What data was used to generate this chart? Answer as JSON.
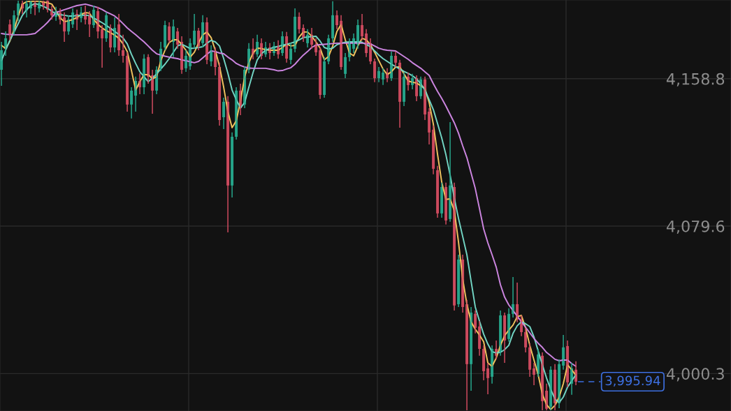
{
  "chart_data": {
    "type": "candlestick",
    "categories": [
      null,
      null,
      null,
      null,
      null,
      null,
      null,
      null,
      null,
      null,
      null,
      null,
      null,
      null,
      null,
      null,
      null,
      null,
      null,
      null,
      null,
      null,
      null,
      null,
      null,
      null,
      null,
      null,
      null,
      null,
      null,
      null,
      null,
      null,
      null,
      null,
      null,
      null,
      null,
      null,
      null,
      null,
      null,
      null,
      null,
      null,
      null,
      null,
      null,
      null,
      null,
      null,
      null,
      null,
      null,
      null,
      null,
      null,
      null,
      null,
      null,
      null,
      null,
      null,
      null,
      null,
      null,
      null,
      null,
      null,
      null,
      null,
      null,
      null,
      null,
      null,
      null,
      null,
      null,
      null,
      null,
      null,
      null,
      null,
      null,
      null,
      null,
      null,
      null,
      null,
      null,
      null,
      null,
      null,
      null,
      null,
      null,
      null,
      null,
      null,
      null,
      null,
      null,
      null,
      null,
      null,
      null,
      null,
      null,
      null,
      null,
      null,
      null,
      null,
      null,
      null,
      null,
      null,
      null,
      null,
      null,
      null,
      null,
      null,
      null,
      null,
      null,
      null,
      null,
      null,
      null,
      null,
      null,
      null,
      null,
      null,
      null,
      null
    ],
    "ohlc": [
      [
        4163.6,
        4178.6,
        4155.0,
        4174.1
      ],
      [
        4174.9,
        4184.2,
        4171.1,
        4180.5
      ],
      [
        4188.0,
        4190.6,
        4179.4,
        4182.4
      ],
      [
        4184.2,
        4195.5,
        4182.4,
        4192.9
      ],
      [
        4192.9,
        4200.7,
        4189.9,
        4199.2
      ],
      [
        4199.2,
        4200.7,
        4193.6,
        4196.6
      ],
      [
        4195.5,
        4200.7,
        4191.7,
        4199.2
      ],
      [
        4196.6,
        4200.7,
        4193.6,
        4200.4
      ],
      [
        4199.6,
        4200.7,
        4192.9,
        4197.4
      ],
      [
        4196.6,
        4200.7,
        4194.4,
        4199.6
      ],
      [
        4200.4,
        4200.7,
        4195.9,
        4198.1
      ],
      [
        4200.7,
        4200.9,
        4194.4,
        4195.9
      ],
      [
        4196.2,
        4198.1,
        4190.6,
        4192.9
      ],
      [
        4192.1,
        4197.4,
        4189.9,
        4195.1
      ],
      [
        4194.4,
        4196.6,
        4188.0,
        4190.6
      ],
      [
        4191.7,
        4194.4,
        4178.6,
        4184.2
      ],
      [
        4184.2,
        4192.9,
        4182.4,
        4190.6
      ],
      [
        4188.0,
        4196.6,
        4186.1,
        4194.4
      ],
      [
        4193.6,
        4195.9,
        4185.0,
        4190.6
      ],
      [
        4191.4,
        4197.4,
        4189.1,
        4194.4
      ],
      [
        4194.4,
        4198.1,
        4188.0,
        4190.6
      ],
      [
        4192.9,
        4195.1,
        4181.2,
        4188.0
      ],
      [
        4187.6,
        4198.1,
        4186.1,
        4195.9
      ],
      [
        4195.1,
        4197.4,
        4180.5,
        4184.2
      ],
      [
        4185.4,
        4187.6,
        4164.7,
        4180.5
      ],
      [
        4180.5,
        4194.4,
        4178.6,
        4192.9
      ],
      [
        4186.1,
        4188.0,
        4173.0,
        4175.6
      ],
      [
        4175.6,
        4191.7,
        4173.0,
        4186.1
      ],
      [
        4188.0,
        4193.6,
        4171.1,
        4174.1
      ],
      [
        4174.1,
        4182.4,
        4167.4,
        4171.1
      ],
      [
        4171.1,
        4173.0,
        4141.1,
        4144.9
      ],
      [
        4144.9,
        4154.2,
        4137.4,
        4152.4
      ],
      [
        4149.7,
        4159.9,
        4141.1,
        4157.6
      ],
      [
        4157.6,
        4161.7,
        4150.5,
        4154.2
      ],
      [
        4154.2,
        4171.9,
        4150.5,
        4169.6
      ],
      [
        4170.4,
        4171.9,
        4156.1,
        4159.9
      ],
      [
        4160.6,
        4163.6,
        4140.0,
        4152.4
      ],
      [
        4152.4,
        4165.5,
        4150.5,
        4163.6
      ],
      [
        4164.4,
        4178.6,
        4162.9,
        4174.9
      ],
      [
        4175.6,
        4189.9,
        4174.1,
        4187.6
      ],
      [
        4186.9,
        4189.1,
        4177.9,
        4179.4
      ],
      [
        4178.6,
        4190.6,
        4170.4,
        4186.9
      ],
      [
        4184.2,
        4186.1,
        4174.9,
        4177.1
      ],
      [
        4178.6,
        4181.6,
        4161.4,
        4163.6
      ],
      [
        4164.4,
        4174.1,
        4162.5,
        4171.1
      ],
      [
        4165.5,
        4180.5,
        4163.6,
        4177.9
      ],
      [
        4177.1,
        4193.6,
        4174.9,
        4184.6
      ],
      [
        4184.6,
        4186.1,
        4174.1,
        4176.4
      ],
      [
        4177.9,
        4192.9,
        4175.6,
        4189.1
      ],
      [
        4189.1,
        4191.7,
        4166.6,
        4168.9
      ],
      [
        4168.1,
        4176.7,
        4165.5,
        4174.1
      ],
      [
        4173.4,
        4175.6,
        4160.6,
        4165.1
      ],
      [
        4165.1,
        4167.4,
        4133.6,
        4136.6
      ],
      [
        4138.1,
        4148.6,
        4131.7,
        4146.4
      ],
      [
        4146.4,
        4149.4,
        4076.2,
        4101.4
      ],
      [
        4101.4,
        4129.9,
        4095.0,
        4127.6
      ],
      [
        4127.6,
        4154.2,
        4126.1,
        4152.4
      ],
      [
        4152.4,
        4156.1,
        4139.2,
        4143.0
      ],
      [
        4144.9,
        4165.5,
        4143.0,
        4163.6
      ],
      [
        4163.6,
        4177.9,
        4161.7,
        4174.9
      ],
      [
        4174.9,
        4180.5,
        4169.2,
        4171.9
      ],
      [
        4171.9,
        4182.4,
        4170.4,
        4178.6
      ],
      [
        4177.9,
        4180.5,
        4169.2,
        4171.1
      ],
      [
        4171.9,
        4178.6,
        4170.4,
        4175.6
      ],
      [
        4175.6,
        4177.9,
        4169.2,
        4172.6
      ],
      [
        4172.6,
        4178.6,
        4171.1,
        4176.4
      ],
      [
        4176.4,
        4179.4,
        4169.6,
        4171.9
      ],
      [
        4172.6,
        4184.2,
        4171.1,
        4181.6
      ],
      [
        4181.6,
        4183.9,
        4167.4,
        4169.6
      ],
      [
        4168.9,
        4177.9,
        4166.6,
        4174.9
      ],
      [
        4174.9,
        4196.6,
        4173.0,
        4192.1
      ],
      [
        4192.1,
        4194.4,
        4183.1,
        4185.4
      ],
      [
        4186.1,
        4188.0,
        4178.6,
        4180.9
      ],
      [
        4177.9,
        4185.4,
        4175.6,
        4182.4
      ],
      [
        4182.4,
        4186.1,
        4174.9,
        4177.1
      ],
      [
        4177.1,
        4180.5,
        4171.1,
        4173.0
      ],
      [
        4174.1,
        4175.6,
        4147.9,
        4150.1
      ],
      [
        4150.1,
        4170.4,
        4148.6,
        4168.1
      ],
      [
        4168.1,
        4182.4,
        4166.6,
        4180.5
      ],
      [
        4180.5,
        4200.4,
        4178.6,
        4192.9
      ],
      [
        4192.9,
        4195.5,
        4185.4,
        4187.6
      ],
      [
        4189.9,
        4192.9,
        4163.6,
        4165.1
      ],
      [
        4161.4,
        4172.6,
        4159.1,
        4170.4
      ],
      [
        4170.4,
        4180.5,
        4168.1,
        4177.9
      ],
      [
        4174.9,
        4183.1,
        4172.6,
        4180.5
      ],
      [
        4177.1,
        4190.6,
        4174.9,
        4187.6
      ],
      [
        4187.6,
        4193.6,
        4179.4,
        4181.6
      ],
      [
        4183.1,
        4185.4,
        4170.4,
        4172.6
      ],
      [
        4177.9,
        4180.5,
        4166.6,
        4168.1
      ],
      [
        4168.1,
        4169.6,
        4156.9,
        4159.1
      ],
      [
        4159.1,
        4165.1,
        4156.9,
        4162.9
      ],
      [
        4158.4,
        4164.4,
        4155.4,
        4162.1
      ],
      [
        4162.1,
        4164.4,
        4156.9,
        4159.1
      ],
      [
        4159.1,
        4173.4,
        4157.6,
        4171.1
      ],
      [
        4171.1,
        4173.4,
        4165.1,
        4167.4
      ],
      [
        4167.4,
        4168.9,
        4132.5,
        4146.4
      ],
      [
        4146.4,
        4162.1,
        4144.1,
        4159.9
      ],
      [
        4159.9,
        4162.1,
        4152.4,
        4155.4
      ],
      [
        4155.4,
        4161.4,
        4153.1,
        4159.1
      ],
      [
        4159.1,
        4160.6,
        4146.7,
        4149.4
      ],
      [
        4149.4,
        4159.9,
        4147.9,
        4158.4
      ],
      [
        4158.4,
        4159.9,
        4136.6,
        4139.6
      ],
      [
        4141.1,
        4143.0,
        4123.5,
        4129.9
      ],
      [
        4131.4,
        4133.6,
        4107.4,
        4110.4
      ],
      [
        4109.6,
        4111.9,
        4084.1,
        4086.4
      ],
      [
        4086.4,
        4102.9,
        4084.1,
        4100.6
      ],
      [
        4100.6,
        4102.9,
        4080.4,
        4082.6
      ],
      [
        4083.4,
        4135.5,
        4081.9,
        4101.4
      ],
      [
        4100.6,
        4102.9,
        4034.2,
        4036.9
      ],
      [
        4037.6,
        4064.2,
        4036.1,
        4061.6
      ],
      [
        4061.6,
        4064.2,
        4033.1,
        4036.1
      ],
      [
        4037.6,
        4039.9,
        3980.6,
        4005.4
      ],
      [
        4005.4,
        4036.1,
        3991.1,
        4033.1
      ],
      [
        4032.4,
        4034.2,
        4021.9,
        4024.9
      ],
      [
        4025.6,
        4028.6,
        4009.9,
        4013.6
      ],
      [
        4013.6,
        4015.5,
        3996.7,
        4001.6
      ],
      [
        4003.1,
        4006.1,
        3989.2,
        3997.9
      ],
      [
        3998.6,
        4015.5,
        3994.9,
        4013.6
      ],
      [
        4013.6,
        4018.1,
        4008.0,
        4009.9
      ],
      [
        4011.7,
        4034.2,
        4009.9,
        4031.6
      ],
      [
        4031.6,
        4033.1,
        4006.1,
        4018.1
      ],
      [
        4018.9,
        4035.4,
        4017.4,
        4032.4
      ],
      [
        4032.4,
        4052.2,
        4030.5,
        4037.6
      ],
      [
        4037.6,
        4049.2,
        4027.9,
        4029.4
      ],
      [
        4029.4,
        4031.6,
        4020.4,
        4022.6
      ],
      [
        4022.6,
        4024.9,
        4011.7,
        4014.4
      ],
      [
        4014.4,
        4016.6,
        3998.6,
        4002.4
      ],
      [
        4003.1,
        4006.1,
        3994.1,
        3999.7
      ],
      [
        4000.1,
        4013.6,
        3998.6,
        4010.6
      ],
      [
        4009.9,
        4011.7,
        3980.6,
        3985.5
      ],
      [
        3991.1,
        3994.9,
        3980.6,
        3981.4
      ],
      [
        3982.5,
        4004.2,
        3980.6,
        4002.4
      ],
      [
        4002.4,
        4005.4,
        3980.6,
        3984.4
      ],
      [
        3984.4,
        4008.0,
        3981.7,
        4005.4
      ],
      [
        4004.6,
        4021.1,
        4002.4,
        4014.4
      ],
      [
        4015.1,
        4018.1,
        3993.0,
        3995.6
      ],
      [
        3994.9,
        4006.1,
        3988.9,
        4003.1
      ],
      [
        4002.4,
        4006.9,
        3994.1,
        3995.94
      ]
    ],
    "colors": [
      "#26a48a",
      "#26a48a",
      "#cc4a5e",
      "#26a48a",
      "#26a48a",
      "#cc4a5e",
      "#26a48a",
      "#26a48a",
      "#cc4a5e",
      "#26a48a",
      "#cc4a5e",
      "#cc4a5e",
      "#cc4a5e",
      "#26a48a",
      "#cc4a5e",
      "#cc4a5e",
      "#26a48a",
      "#26a48a",
      "#cc4a5e",
      "#26a48a",
      "#cc4a5e",
      "#cc4a5e",
      "#26a48a",
      "#cc4a5e",
      "#cc4a5e",
      "#26a48a",
      "#cc4a5e",
      "#26a48a",
      "#cc4a5e",
      "#cc4a5e",
      "#cc4a5e",
      "#26a48a",
      "#26a48a",
      "#cc4a5e",
      "#26a48a",
      "#cc4a5e",
      "#cc4a5e",
      "#26a48a",
      "#26a48a",
      "#26a48a",
      "#cc4a5e",
      "#26a48a",
      "#cc4a5e",
      "#cc4a5e",
      "#26a48a",
      "#26a48a",
      "#26a48a",
      "#cc4a5e",
      "#26a48a",
      "#cc4a5e",
      "#26a48a",
      "#cc4a5e",
      "#cc4a5e",
      "#26a48a",
      "#cc4a5e",
      "#26a48a",
      "#26a48a",
      "#cc4a5e",
      "#26a48a",
      "#26a48a",
      "#cc4a5e",
      "#26a48a",
      "#cc4a5e",
      "#26a48a",
      "#cc4a5e",
      "#26a48a",
      "#cc4a5e",
      "#26a48a",
      "#cc4a5e",
      "#26a48a",
      "#26a48a",
      "#cc4a5e",
      "#cc4a5e",
      "#26a48a",
      "#cc4a5e",
      "#cc4a5e",
      "#cc4a5e",
      "#26a48a",
      "#26a48a",
      "#26a48a",
      "#cc4a5e",
      "#cc4a5e",
      "#26a48a",
      "#26a48a",
      "#26a48a",
      "#26a48a",
      "#cc4a5e",
      "#cc4a5e",
      "#cc4a5e",
      "#cc4a5e",
      "#26a48a",
      "#26a48a",
      "#cc4a5e",
      "#26a48a",
      "#cc4a5e",
      "#cc4a5e",
      "#26a48a",
      "#cc4a5e",
      "#26a48a",
      "#cc4a5e",
      "#26a48a",
      "#cc4a5e",
      "#cc4a5e",
      "#cc4a5e",
      "#cc4a5e",
      "#26a48a",
      "#cc4a5e",
      "#26a48a",
      "#cc4a5e",
      "#26a48a",
      "#cc4a5e",
      "#cc4a5e",
      "#26a48a",
      "#cc4a5e",
      "#cc4a5e",
      "#cc4a5e",
      "#cc4a5e",
      "#26a48a",
      "#cc4a5e",
      "#26a48a",
      "#cc4a5e",
      "#26a48a",
      "#26a48a",
      "#cc4a5e",
      "#cc4a5e",
      "#cc4a5e",
      "#cc4a5e",
      "#cc4a5e",
      "#26a48a",
      "#cc4a5e",
      "#cc4a5e",
      "#26a48a",
      "#cc4a5e",
      "#26a48a",
      "#26a48a",
      "#cc4a5e",
      "#26a48a",
      "#cc4a5e"
    ],
    "series": [
      {
        "type": "line",
        "color": "#f0c25e",
        "values": [
          4176.7,
          4174.9,
          4179.0,
          4185.0,
          4192.5,
          4198.9,
          4200.2,
          4200.4,
          4200.4,
          4200.4,
          4200.0,
          4199.6,
          4198.9,
          4195.5,
          4191.4,
          4189.5,
          4189.9,
          4190.6,
          4191.7,
          4193.2,
          4194.4,
          4194.0,
          4190.6,
          4188.0,
          4186.1,
          4184.6,
          4183.5,
          4182.2,
          4180.5,
          4177.5,
          4173.4,
          4163.2,
          4152.7,
          4157.2,
          4161.0,
          4161.0,
          4158.7,
          4159.9,
          4168.5,
          4174.1,
          4178.2,
          4179.7,
          4179.7,
          4177.1,
          4174.1,
          4170.4,
          4173.0,
          4177.9,
          4182.4,
          4183.9,
          4180.9,
          4174.1,
          4165.5,
          4154.2,
          4141.1,
          4132.5,
          4136.2,
          4146.7,
          4159.9,
          4167.4,
          4172.6,
          4175.2,
          4175.0,
          4174.4,
          4174.1,
          4174.1,
          4174.1,
          4175.6,
          4177.5,
          4176.4,
          4176.7,
          4181.2,
          4183.9,
          4183.9,
          4181.6,
          4178.6,
          4175.2,
          4168.9,
          4170.7,
          4176.4,
          4184.2,
          4188.0,
          4179.7,
          4172.6,
          4171.1,
          4176.4,
          4180.5,
          4179.7,
          4177.1,
          4173.0,
          4168.5,
          4164.0,
          4161.0,
          4162.5,
          4165.1,
          4165.1,
          4161.4,
          4157.6,
          4156.9,
          4156.5,
          4155.0,
          4153.5,
          4146.0,
          4134.4,
          4118.2,
          4103.2,
          4093.9,
          4094.2,
          4087.9,
          4071.0,
          4051.1,
          4037.6,
          4028.2,
          4024.1,
          4021.1,
          4017.4,
          4006.1,
          4004.2,
          4008.7,
          4015.5,
          4020.7,
          4023.7,
          4026.4,
          4030.9,
          4031.6,
          4024.9,
          4015.5,
          4007.6,
          3999.7,
          3989.2,
          3983.6,
          3981.0,
          3983.2,
          3987.7,
          3994.9,
          4005.0,
          4002.4,
          3999.4
        ]
      },
      {
        "type": "line",
        "color": "#72d5c4",
        "values": [
          4168.5,
          4174.1,
          4179.4,
          4183.9,
          4188.4,
          4192.9,
          4195.9,
          4198.1,
          4199.2,
          4198.5,
          4197.7,
          4196.6,
          4195.1,
          4193.6,
          4193.2,
          4192.9,
          4192.5,
          4192.5,
          4192.7,
          4192.9,
          4192.9,
          4192.7,
          4191.4,
          4190.2,
          4188.9,
          4187.4,
          4185.9,
          4184.2,
          4182.5,
          4180.7,
          4177.5,
          4171.9,
          4167.0,
          4162.5,
          4159.9,
          4157.2,
          4159.1,
          4161.4,
          4164.0,
          4166.6,
          4169.6,
          4173.0,
          4176.4,
          4177.3,
          4176.2,
          4175.0,
          4175.2,
          4175.6,
          4176.0,
          4177.9,
          4179.4,
          4178.6,
          4176.4,
          4169.6,
          4161.7,
          4152.7,
          4147.5,
          4143.0,
          4146.0,
          4154.2,
          4162.1,
          4168.9,
          4172.2,
          4174.1,
          4175.0,
          4175.6,
          4176.2,
          4176.7,
          4177.3,
          4177.9,
          4178.6,
          4179.7,
          4180.9,
          4181.2,
          4181.4,
          4181.6,
          4179.0,
          4175.6,
          4174.7,
          4175.2,
          4177.1,
          4177.9,
          4178.4,
          4178.6,
          4178.6,
          4178.6,
          4178.4,
          4177.1,
          4176.0,
          4173.7,
          4171.5,
          4169.6,
          4168.1,
          4166.6,
          4165.3,
          4164.0,
          4162.7,
          4161.7,
          4160.4,
          4158.7,
          4156.1,
          4152.7,
          4147.5,
          4142.2,
          4134.7,
          4126.9,
          4117.9,
          4107.0,
          4094.6,
          4083.7,
          4074.0,
          4064.2,
          4050.0,
          4036.1,
          4028.6,
          4021.5,
          4016.2,
          4012.1,
          4011.4,
          4011.7,
          4013.2,
          4015.5,
          4021.9,
          4026.0,
          4028.2,
          4027.1,
          4025.6,
          4020.0,
          4012.5,
          4005.0,
          3997.9,
          3991.9,
          3986.6,
          3984.7,
          3987.7,
          3993.0,
          3996.4,
          3999.7
        ]
      },
      {
        "type": "line",
        "color": "#cc85e0",
        "values": [
          4183.1,
          4182.7,
          4182.5,
          4182.4,
          4182.4,
          4182.4,
          4182.4,
          4182.7,
          4183.1,
          4185.0,
          4186.9,
          4189.1,
          4191.7,
          4194.4,
          4195.1,
          4195.9,
          4196.6,
          4197.4,
          4198.1,
          4198.5,
          4198.9,
          4198.3,
          4197.7,
          4197.0,
          4196.0,
          4194.7,
          4193.6,
          4192.5,
          4190.6,
          4188.4,
          4186.1,
          4184.2,
          4182.4,
          4180.5,
          4178.6,
          4176.4,
          4174.1,
          4172.2,
          4171.5,
          4170.9,
          4170.4,
          4170.0,
          4169.6,
          4168.9,
          4168.5,
          4167.9,
          4167.4,
          4168.1,
          4170.0,
          4171.9,
          4173.7,
          4173.4,
          4172.6,
          4172.2,
          4170.4,
          4168.9,
          4167.0,
          4165.9,
          4165.1,
          4164.5,
          4164.4,
          4164.4,
          4164.4,
          4164.4,
          4164.0,
          4163.6,
          4163.0,
          4163.2,
          4164.0,
          4164.7,
          4166.6,
          4169.2,
          4171.5,
          4173.4,
          4175.6,
          4176.9,
          4177.1,
          4177.3,
          4177.5,
          4177.7,
          4177.9,
          4177.9,
          4177.9,
          4177.9,
          4177.9,
          4177.9,
          4177.9,
          4177.7,
          4177.5,
          4176.4,
          4175.2,
          4174.5,
          4174.1,
          4173.9,
          4173.7,
          4172.2,
          4170.7,
          4169.2,
          4167.4,
          4165.9,
          4164.4,
          4162.5,
          4160.6,
          4156.1,
          4152.0,
          4148.2,
          4144.1,
          4139.6,
          4135.1,
          4129.5,
          4122.7,
          4116.4,
          4108.1,
          4099.8,
          4089.0,
          4078.1,
          4070.6,
          4064.2,
          4057.5,
          4048.1,
          4041.4,
          4037.2,
          4034.2,
          4031.2,
          4028.2,
          4025.2,
          4022.2,
          4019.2,
          4016.6,
          4014.4,
          4011.7,
          4009.9,
          4008.0,
          4007.2,
          4007.6,
          4007.6,
          4005.7,
          4004.2
        ]
      }
    ],
    "ylim": [
      3980.2,
      4201.1
    ],
    "yticks": [
      {
        "value": 4000.3,
        "label": "4,000.3"
      },
      {
        "value": 4079.6,
        "label": "4,079.6"
      },
      {
        "value": 4158.8,
        "label": "4,158.8"
      }
    ],
    "grid": true,
    "tick_labels": "y",
    "ref_lines": [
      {
        "axis": "y",
        "value": 3995.94,
        "label": "3,995.94",
        "color": "#3d6fe0",
        "line_style": "dashed"
      }
    ]
  }
}
